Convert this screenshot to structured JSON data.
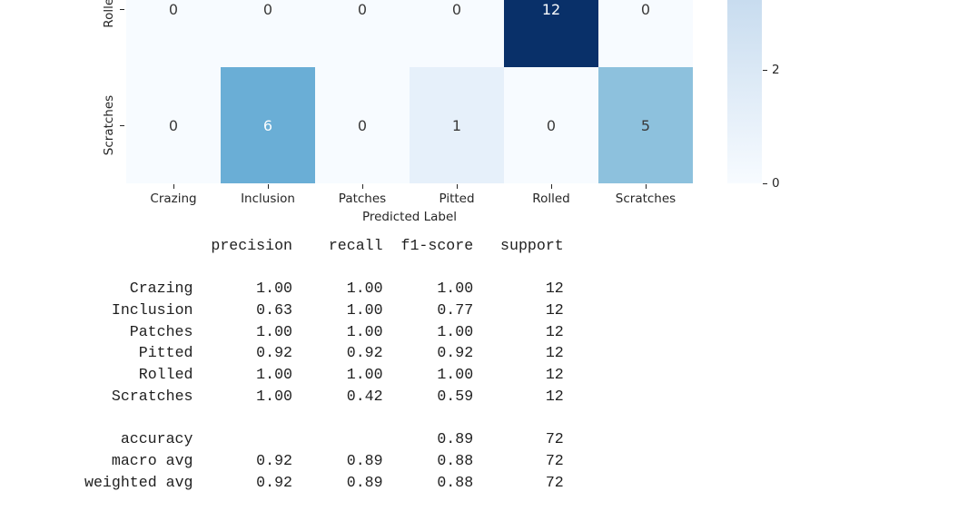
{
  "chart_data": [
    {
      "type": "heatmap",
      "xlabel": "Predicted Label",
      "x_categories": [
        "Crazing",
        "Inclusion",
        "Patches",
        "Pitted",
        "Rolled",
        "Scratches"
      ],
      "y_categories_visible": [
        "Rolled",
        "Scratches"
      ],
      "values": [
        [
          0,
          0,
          0,
          0,
          12,
          0
        ],
        [
          0,
          6,
          0,
          1,
          0,
          5
        ]
      ],
      "colormap": "Blues",
      "colorbar_ticks_visible": [
        "2",
        "0"
      ],
      "colorbar_gradient": {
        "bottom": "#f7fbff",
        "top": "#c8dcef"
      },
      "value_styles": {
        "0": {
          "bg": "#f7fbff",
          "fg": "#3a3a3a"
        },
        "1": {
          "bg": "#e6f0fa",
          "fg": "#3a3a3a"
        },
        "5": {
          "bg": "#8dc1dd",
          "fg": "#3a3a3a"
        },
        "6": {
          "bg": "#6aaed6",
          "fg": "#fbfdfe"
        },
        "12": {
          "bg": "#093069",
          "fg": "#fbfdfe"
        }
      }
    },
    {
      "type": "table",
      "headers": [
        "precision",
        "recall",
        "f1-score",
        "support"
      ],
      "rows": [
        [
          "Crazing",
          "1.00",
          "1.00",
          "1.00",
          "12"
        ],
        [
          "Inclusion",
          "0.63",
          "1.00",
          "0.77",
          "12"
        ],
        [
          "Patches",
          "1.00",
          "1.00",
          "1.00",
          "12"
        ],
        [
          "Pitted",
          "0.92",
          "0.92",
          "0.92",
          "12"
        ],
        [
          "Rolled",
          "1.00",
          "1.00",
          "1.00",
          "12"
        ],
        [
          "Scratches",
          "1.00",
          "0.42",
          "0.59",
          "12"
        ]
      ],
      "summary_rows": [
        [
          "accuracy",
          "",
          "",
          "0.89",
          "72"
        ],
        [
          "macro avg",
          "0.92",
          "0.89",
          "0.88",
          "72"
        ],
        [
          "weighted avg",
          "0.92",
          "0.89",
          "0.88",
          "72"
        ]
      ]
    }
  ]
}
